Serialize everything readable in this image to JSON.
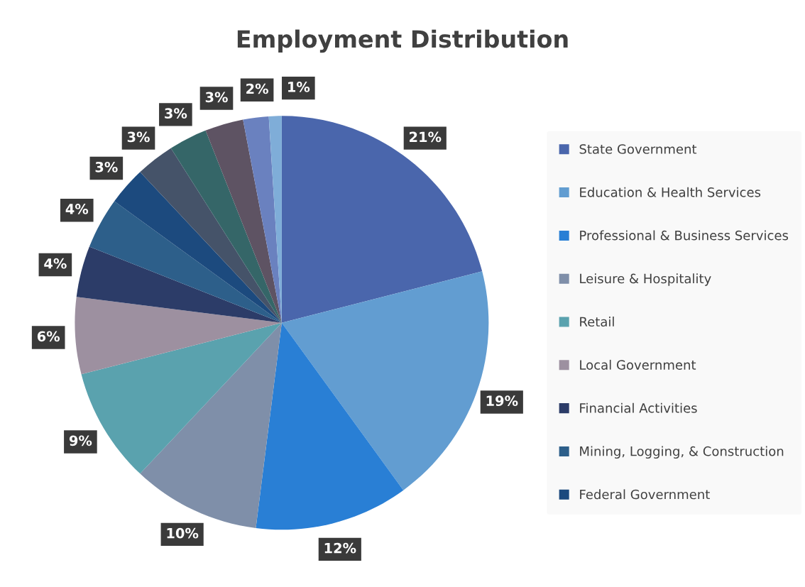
{
  "chart_data": {
    "type": "pie",
    "title": "Employment Distribution",
    "categories": [
      "State Government",
      "Education & Health Services",
      "Professional & Business Services",
      "Leisure & Hospitality",
      "Retail",
      "Local Government",
      "Financial Activities",
      "Mining, Logging, & Construction",
      "Federal Government",
      null,
      null,
      null,
      null,
      null
    ],
    "values": [
      21,
      19,
      12,
      10,
      9,
      6,
      4,
      4,
      3,
      3,
      3,
      3,
      2,
      1
    ],
    "value_labels": [
      "21%",
      "19%",
      "12%",
      "10%",
      "9%",
      "6%",
      "4%",
      "4%",
      "3%",
      "3%",
      "3%",
      "3%",
      "2%",
      "1%"
    ],
    "colors": [
      "#4a66ac",
      "#629dd1",
      "#297fd5",
      "#7f8fa9",
      "#5aa2ae",
      "#9d90a0",
      "#2c3c68",
      "#2d5f8a",
      "#1c4a7e",
      "#455369",
      "#356668",
      "#5e5363",
      "#6a81bf",
      "#7fadd8"
    ],
    "legend": "right"
  }
}
